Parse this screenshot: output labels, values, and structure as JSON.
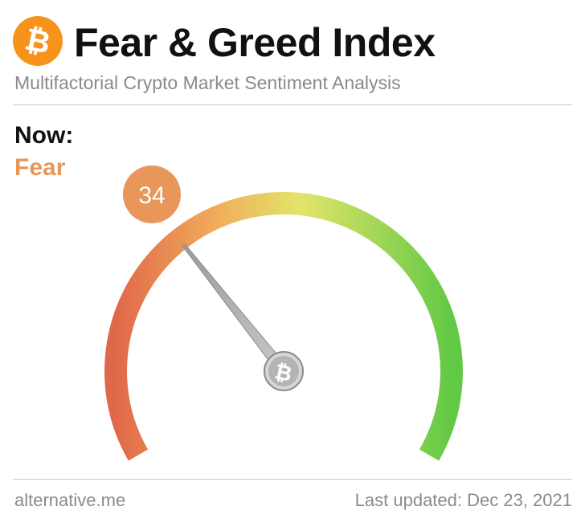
{
  "header": {
    "title": "Fear & Greed Index",
    "subtitle": "Multifactorial Crypto Market Sentiment Analysis",
    "logo_icon": "bitcoin-icon",
    "logo_glyph": "₿"
  },
  "current": {
    "now_label": "Now:",
    "classification": "Fear",
    "value": "34",
    "value_number": 34,
    "scale_min": 0,
    "scale_max": 100,
    "classification_color": "#e8965a"
  },
  "gauge": {
    "hub_icon": "bitcoin-icon",
    "hub_glyph": "₿",
    "gradient_colors": [
      "#e0684a",
      "#f0ad5a",
      "#e3e46a",
      "#62c945"
    ]
  },
  "footer": {
    "source": "alternative.me",
    "updated": "Last updated: Dec 23, 2021"
  }
}
